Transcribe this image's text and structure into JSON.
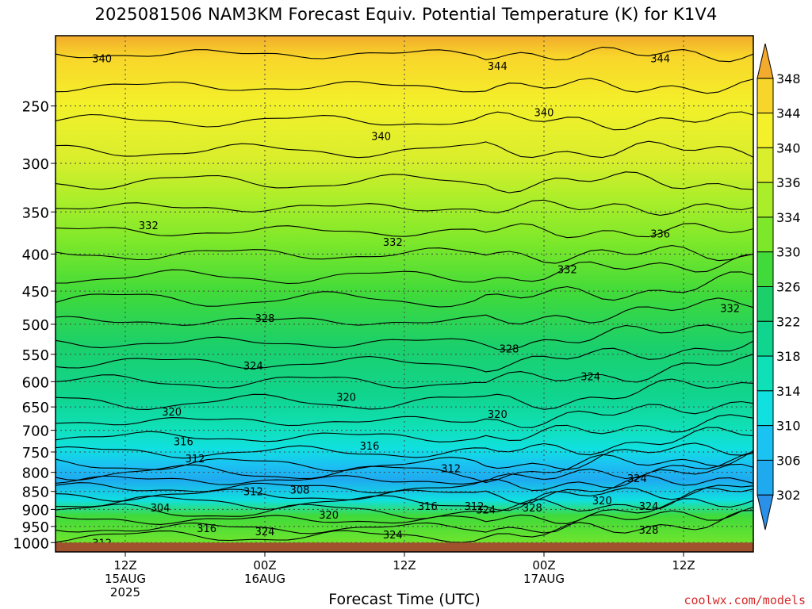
{
  "title": "2025081506 NAM3KM Forecast Equiv. Potential Temperature (K) for K1V4",
  "credit": "coolwx.com/models",
  "chart_data": {
    "type": "heatmap",
    "xlabel": "Forecast Time (UTC)",
    "ylabel": "",
    "y_scale": "pressure (hPa), log, inverted",
    "ylim": [
      1030,
      200
    ],
    "xlim_hours_from_init": [
      0,
      60
    ],
    "y_ticks": [
      250,
      300,
      350,
      400,
      450,
      500,
      550,
      600,
      650,
      700,
      750,
      800,
      850,
      900,
      950,
      1000
    ],
    "x_ticks": [
      {
        "hour": 6,
        "lines": [
          "12Z",
          "15AUG",
          "2025"
        ]
      },
      {
        "hour": 18,
        "lines": [
          "00Z",
          "16AUG"
        ]
      },
      {
        "hour": 30,
        "lines": [
          "12Z"
        ]
      },
      {
        "hour": 42,
        "lines": [
          "00Z",
          "17AUG"
        ]
      },
      {
        "hour": 54,
        "lines": [
          "12Z"
        ]
      }
    ],
    "grid": true,
    "colorbar": {
      "labels": [
        348,
        344,
        340,
        336,
        334,
        330,
        326,
        322,
        318,
        314,
        310,
        306,
        302
      ],
      "colors": [
        "#f2ab2c",
        "#f8d52a",
        "#f4f02a",
        "#d9ee2c",
        "#aaee2a",
        "#7de82a",
        "#40da3a",
        "#1bd06b",
        "#10d58f",
        "#10e0b8",
        "#10e0e0",
        "#1bc3f2",
        "#1faaf0",
        "#2a90e8"
      ]
    },
    "ground_color": "#a0522d",
    "ground_level_hPa": 1000,
    "contours_labeled": [
      {
        "value": 340,
        "x_hour": 4,
        "p": 215
      },
      {
        "value": 344,
        "x_hour": 38,
        "p": 220
      },
      {
        "value": 344,
        "x_hour": 52,
        "p": 215
      },
      {
        "value": 340,
        "x_hour": 28,
        "p": 275
      },
      {
        "value": 340,
        "x_hour": 42,
        "p": 255
      },
      {
        "value": 332,
        "x_hour": 8,
        "p": 365
      },
      {
        "value": 332,
        "x_hour": 29,
        "p": 385
      },
      {
        "value": 332,
        "x_hour": 44,
        "p": 420
      },
      {
        "value": 336,
        "x_hour": 52,
        "p": 375
      },
      {
        "value": 332,
        "x_hour": 58,
        "p": 475
      },
      {
        "value": 328,
        "x_hour": 18,
        "p": 490
      },
      {
        "value": 328,
        "x_hour": 39,
        "p": 540
      },
      {
        "value": 324,
        "x_hour": 17,
        "p": 570
      },
      {
        "value": 324,
        "x_hour": 46,
        "p": 590
      },
      {
        "value": 320,
        "x_hour": 25,
        "p": 630
      },
      {
        "value": 320,
        "x_hour": 10,
        "p": 660
      },
      {
        "value": 320,
        "x_hour": 38,
        "p": 665
      },
      {
        "value": 316,
        "x_hour": 11,
        "p": 725
      },
      {
        "value": 316,
        "x_hour": 27,
        "p": 735
      },
      {
        "value": 312,
        "x_hour": 12,
        "p": 765
      },
      {
        "value": 312,
        "x_hour": 34,
        "p": 790
      },
      {
        "value": 312,
        "x_hour": 17,
        "p": 850
      },
      {
        "value": 308,
        "x_hour": 21,
        "p": 845
      },
      {
        "value": 304,
        "x_hour": 9,
        "p": 895
      },
      {
        "value": 316,
        "x_hour": 32,
        "p": 890
      },
      {
        "value": 312,
        "x_hour": 36,
        "p": 890
      },
      {
        "value": 328,
        "x_hour": 41,
        "p": 895
      },
      {
        "value": 320,
        "x_hour": 47,
        "p": 875
      },
      {
        "value": 324,
        "x_hour": 50,
        "p": 815
      },
      {
        "value": 324,
        "x_hour": 37,
        "p": 900
      },
      {
        "value": 320,
        "x_hour": 23.5,
        "p": 915
      },
      {
        "value": 324,
        "x_hour": 51,
        "p": 890
      },
      {
        "value": 316,
        "x_hour": 13,
        "p": 955
      },
      {
        "value": 324,
        "x_hour": 18,
        "p": 965
      },
      {
        "value": 324,
        "x_hour": 29,
        "p": 975
      },
      {
        "value": 312,
        "x_hour": 4,
        "p": 1000
      },
      {
        "value": 328,
        "x_hour": 51,
        "p": 960
      },
      {
        "value": 332,
        "x_hour": 45,
        "p": 1020
      }
    ]
  }
}
